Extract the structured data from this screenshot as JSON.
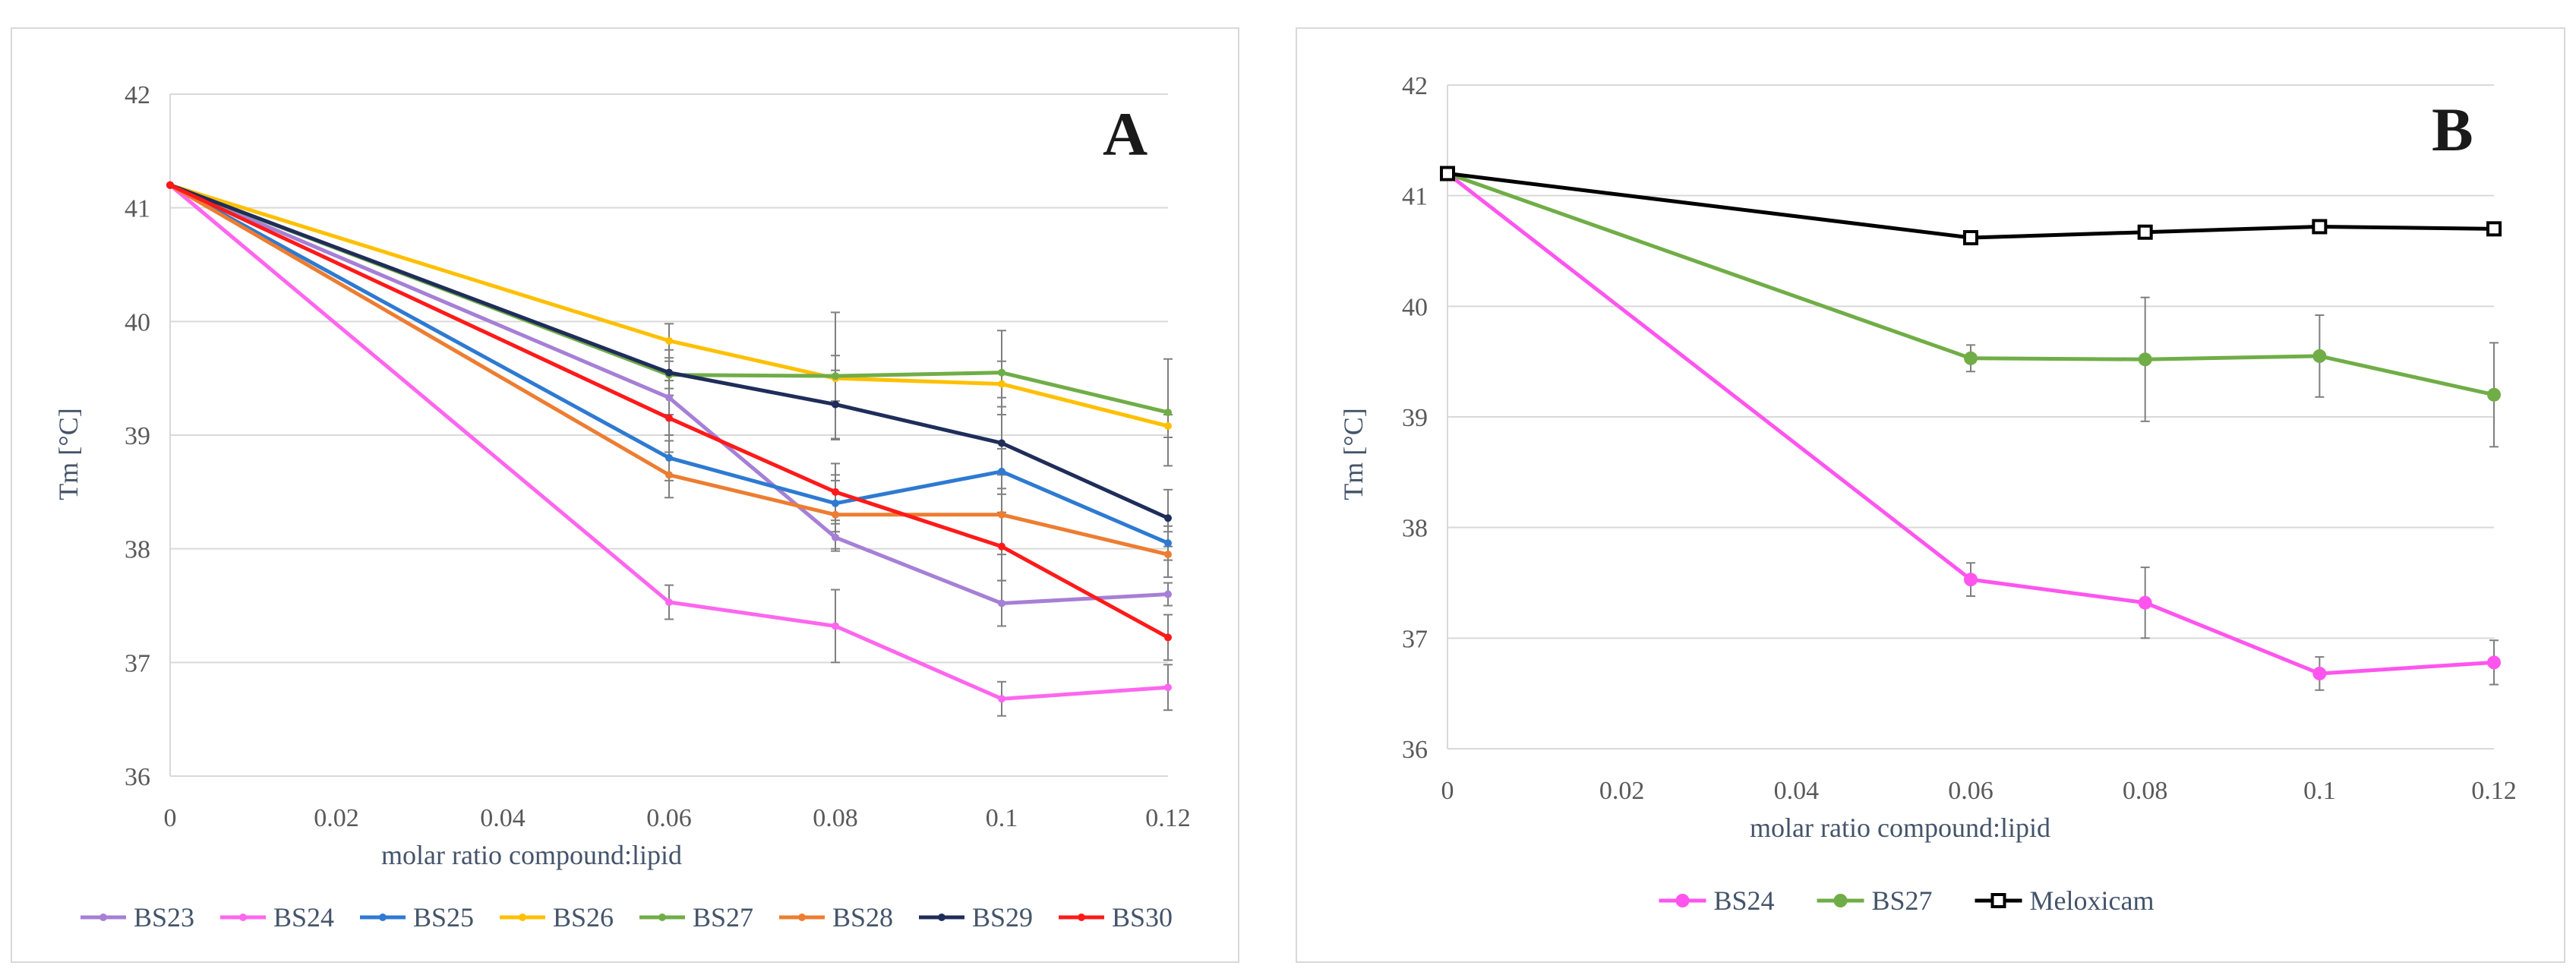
{
  "chart_data": [
    {
      "type": "line",
      "panel_label": "A",
      "xlabel": "molar ratio compound:lipid",
      "ylabel": "Tm [°C]",
      "x": [
        0,
        0.06,
        0.08,
        0.1,
        0.12
      ],
      "xticks": [
        "0",
        "0.02",
        "0.04",
        "0.06",
        "0.08",
        "0.1",
        "0.12"
      ],
      "xlim": [
        0,
        0.12
      ],
      "yticks": [
        "36",
        "37",
        "38",
        "39",
        "40",
        "41",
        "42"
      ],
      "ylim": [
        36,
        42
      ],
      "legend_position": "bottom",
      "series": [
        {
          "name": "BS23",
          "color": "#a67fd6",
          "values": [
            41.2,
            39.33,
            38.1,
            37.52,
            37.6
          ],
          "errors": [
            0,
            0.15,
            0.12,
            0.2,
            0.1
          ]
        },
        {
          "name": "BS24",
          "color": "#ff66ee",
          "values": [
            41.2,
            37.53,
            37.32,
            36.68,
            36.78
          ],
          "errors": [
            0,
            0.15,
            0.32,
            0.15,
            0.2
          ]
        },
        {
          "name": "BS25",
          "color": "#2e7ad1",
          "values": [
            41.2,
            38.8,
            38.4,
            38.68,
            38.05
          ],
          "errors": [
            0,
            0.2,
            0.25,
            0.2,
            0.15
          ]
        },
        {
          "name": "BS26",
          "color": "#ffc000",
          "values": [
            41.2,
            39.83,
            39.5,
            39.45,
            39.08
          ],
          "errors": [
            0,
            0.15,
            0.2,
            0.2,
            0.1
          ]
        },
        {
          "name": "BS27",
          "color": "#70ad47",
          "values": [
            41.2,
            39.53,
            39.52,
            39.55,
            39.2
          ],
          "errors": [
            0,
            0.12,
            0.56,
            0.37,
            0.47
          ]
        },
        {
          "name": "BS28",
          "color": "#ed7d31",
          "values": [
            41.2,
            38.65,
            38.3,
            38.3,
            37.95
          ],
          "errors": [
            0,
            0.2,
            0.3,
            0.35,
            0.2
          ]
        },
        {
          "name": "BS29",
          "color": "#1f2d5a",
          "values": [
            41.2,
            39.55,
            39.27,
            38.93,
            38.27
          ],
          "errors": [
            0,
            0.2,
            0.3,
            0.4,
            0.25
          ]
        },
        {
          "name": "BS30",
          "color": "#ff1a1a",
          "values": [
            41.2,
            39.15,
            38.5,
            38.02,
            37.22
          ],
          "errors": [
            0,
            0.2,
            0.25,
            0.3,
            0.2
          ]
        }
      ]
    },
    {
      "type": "line",
      "panel_label": "B",
      "xlabel": "molar ratio compound:lipid",
      "ylabel": "Tm [°C]",
      "x": [
        0,
        0.06,
        0.08,
        0.1,
        0.12
      ],
      "xticks": [
        "0",
        "0.02",
        "0.04",
        "0.06",
        "0.08",
        "0.1",
        "0.12"
      ],
      "xlim": [
        0,
        0.12
      ],
      "yticks": [
        "36",
        "37",
        "38",
        "39",
        "40",
        "41",
        "42"
      ],
      "ylim": [
        36,
        42
      ],
      "legend_position": "bottom",
      "series": [
        {
          "name": "BS24",
          "color": "#ff55ee",
          "marker": "circle",
          "values": [
            41.2,
            37.53,
            37.32,
            36.68,
            36.78
          ],
          "errors": [
            0,
            0.15,
            0.32,
            0.15,
            0.2
          ]
        },
        {
          "name": "BS27",
          "color": "#70ad47",
          "marker": "circle",
          "values": [
            41.2,
            39.53,
            39.52,
            39.55,
            39.2
          ],
          "errors": [
            0,
            0.12,
            0.56,
            0.37,
            0.47
          ]
        },
        {
          "name": "Meloxicam",
          "color": "#000000",
          "marker": "square",
          "values": [
            41.2,
            40.62,
            40.67,
            40.72,
            40.7
          ],
          "errors": [
            0,
            0.03,
            0.03,
            0.03,
            0.03
          ]
        }
      ]
    }
  ]
}
